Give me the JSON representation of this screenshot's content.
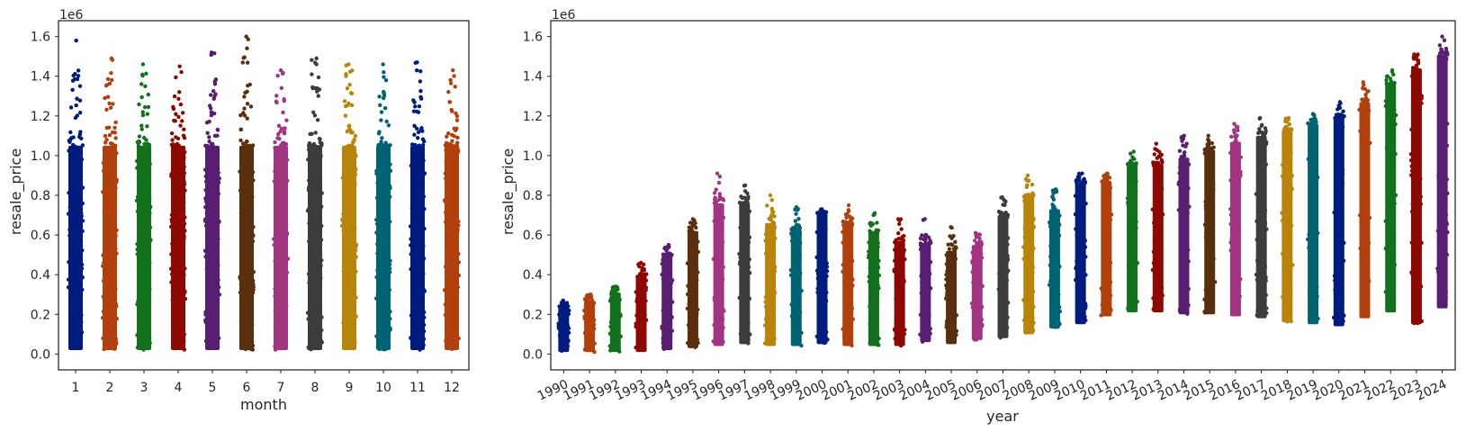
{
  "palette": [
    "#001c7f",
    "#b1400d",
    "#12711c",
    "#8c0800",
    "#591e71",
    "#592f0d",
    "#a23582",
    "#3c3c3c",
    "#b8850a",
    "#006374"
  ],
  "chart_data": [
    {
      "type": "scatter",
      "subtype": "strip",
      "xlabel": "month",
      "ylabel": "resale_price",
      "y_offset_label": "1e6",
      "ylim": [
        -0.08,
        1.68
      ],
      "yticks": [
        0.0,
        0.2,
        0.4,
        0.6,
        0.8,
        1.0,
        1.2,
        1.4,
        1.6
      ],
      "ytick_labels": [
        "0.0",
        "0.2",
        "0.4",
        "0.6",
        "0.8",
        "1.0",
        "1.2",
        "1.4",
        "1.6"
      ],
      "grid": false,
      "categories": [
        "1",
        "2",
        "3",
        "4",
        "5",
        "6",
        "7",
        "8",
        "9",
        "10",
        "11",
        "12"
      ],
      "ranges": [
        {
          "min": 0.02,
          "max": 1.58,
          "dense_max": 1.05
        },
        {
          "min": 0.02,
          "max": 1.49,
          "dense_max": 1.05
        },
        {
          "min": 0.02,
          "max": 1.46,
          "dense_max": 1.05
        },
        {
          "min": 0.02,
          "max": 1.45,
          "dense_max": 1.05
        },
        {
          "min": 0.02,
          "max": 1.52,
          "dense_max": 1.05
        },
        {
          "min": 0.02,
          "max": 1.6,
          "dense_max": 1.05
        },
        {
          "min": 0.02,
          "max": 1.43,
          "dense_max": 1.05
        },
        {
          "min": 0.02,
          "max": 1.49,
          "dense_max": 1.05
        },
        {
          "min": 0.02,
          "max": 1.46,
          "dense_max": 1.05
        },
        {
          "min": 0.02,
          "max": 1.46,
          "dense_max": 1.05
        },
        {
          "min": 0.02,
          "max": 1.47,
          "dense_max": 1.05
        },
        {
          "min": 0.02,
          "max": 1.43,
          "dense_max": 1.05
        }
      ]
    },
    {
      "type": "scatter",
      "subtype": "strip",
      "xlabel": "year",
      "ylabel": "resale_price",
      "y_offset_label": "1e6",
      "ylim": [
        -0.08,
        1.68
      ],
      "yticks": [
        0.0,
        0.2,
        0.4,
        0.6,
        0.8,
        1.0,
        1.2,
        1.4,
        1.6
      ],
      "ytick_labels": [
        "0.0",
        "0.2",
        "0.4",
        "0.6",
        "0.8",
        "1.0",
        "1.2",
        "1.4",
        "1.6"
      ],
      "grid": false,
      "xtick_rotation": 25,
      "categories": [
        "1990",
        "1991",
        "1992",
        "1993",
        "1994",
        "1995",
        "1996",
        "1997",
        "1998",
        "1999",
        "2000",
        "2001",
        "2002",
        "2003",
        "2004",
        "2005",
        "2006",
        "2007",
        "2008",
        "2009",
        "2010",
        "2011",
        "2012",
        "2013",
        "2014",
        "2015",
        "2016",
        "2017",
        "2018",
        "2019",
        "2020",
        "2021",
        "2022",
        "2023",
        "2024"
      ],
      "ranges": [
        {
          "min": 0.01,
          "max": 0.27,
          "dense_max": 0.24
        },
        {
          "min": 0.01,
          "max": 0.3,
          "dense_max": 0.27
        },
        {
          "min": 0.01,
          "max": 0.34,
          "dense_max": 0.31
        },
        {
          "min": 0.01,
          "max": 0.46,
          "dense_max": 0.4
        },
        {
          "min": 0.02,
          "max": 0.55,
          "dense_max": 0.5
        },
        {
          "min": 0.03,
          "max": 0.68,
          "dense_max": 0.62
        },
        {
          "min": 0.04,
          "max": 0.91,
          "dense_max": 0.76
        },
        {
          "min": 0.05,
          "max": 0.85,
          "dense_max": 0.76
        },
        {
          "min": 0.04,
          "max": 0.8,
          "dense_max": 0.66
        },
        {
          "min": 0.04,
          "max": 0.74,
          "dense_max": 0.63
        },
        {
          "min": 0.05,
          "max": 0.73,
          "dense_max": 0.71
        },
        {
          "min": 0.04,
          "max": 0.75,
          "dense_max": 0.66
        },
        {
          "min": 0.04,
          "max": 0.71,
          "dense_max": 0.62
        },
        {
          "min": 0.04,
          "max": 0.68,
          "dense_max": 0.57
        },
        {
          "min": 0.06,
          "max": 0.68,
          "dense_max": 0.56
        },
        {
          "min": 0.05,
          "max": 0.64,
          "dense_max": 0.52
        },
        {
          "min": 0.07,
          "max": 0.61,
          "dense_max": 0.55
        },
        {
          "min": 0.08,
          "max": 0.79,
          "dense_max": 0.7
        },
        {
          "min": 0.1,
          "max": 0.9,
          "dense_max": 0.8
        },
        {
          "min": 0.13,
          "max": 0.83,
          "dense_max": 0.73
        },
        {
          "min": 0.15,
          "max": 0.91,
          "dense_max": 0.86
        },
        {
          "min": 0.19,
          "max": 0.91,
          "dense_max": 0.87
        },
        {
          "min": 0.21,
          "max": 1.02,
          "dense_max": 0.95
        },
        {
          "min": 0.21,
          "max": 1.06,
          "dense_max": 0.96
        },
        {
          "min": 0.2,
          "max": 1.1,
          "dense_max": 0.99
        },
        {
          "min": 0.2,
          "max": 1.1,
          "dense_max": 1.03
        },
        {
          "min": 0.19,
          "max": 1.16,
          "dense_max": 1.07
        },
        {
          "min": 0.18,
          "max": 1.19,
          "dense_max": 1.1
        },
        {
          "min": 0.16,
          "max": 1.19,
          "dense_max": 1.13
        },
        {
          "min": 0.15,
          "max": 1.21,
          "dense_max": 1.16
        },
        {
          "min": 0.14,
          "max": 1.27,
          "dense_max": 1.2
        },
        {
          "min": 0.18,
          "max": 1.37,
          "dense_max": 1.27
        },
        {
          "min": 0.21,
          "max": 1.43,
          "dense_max": 1.36
        },
        {
          "min": 0.15,
          "max": 1.51,
          "dense_max": 1.44
        },
        {
          "min": 0.23,
          "max": 1.6,
          "dense_max": 1.51
        }
      ]
    }
  ]
}
